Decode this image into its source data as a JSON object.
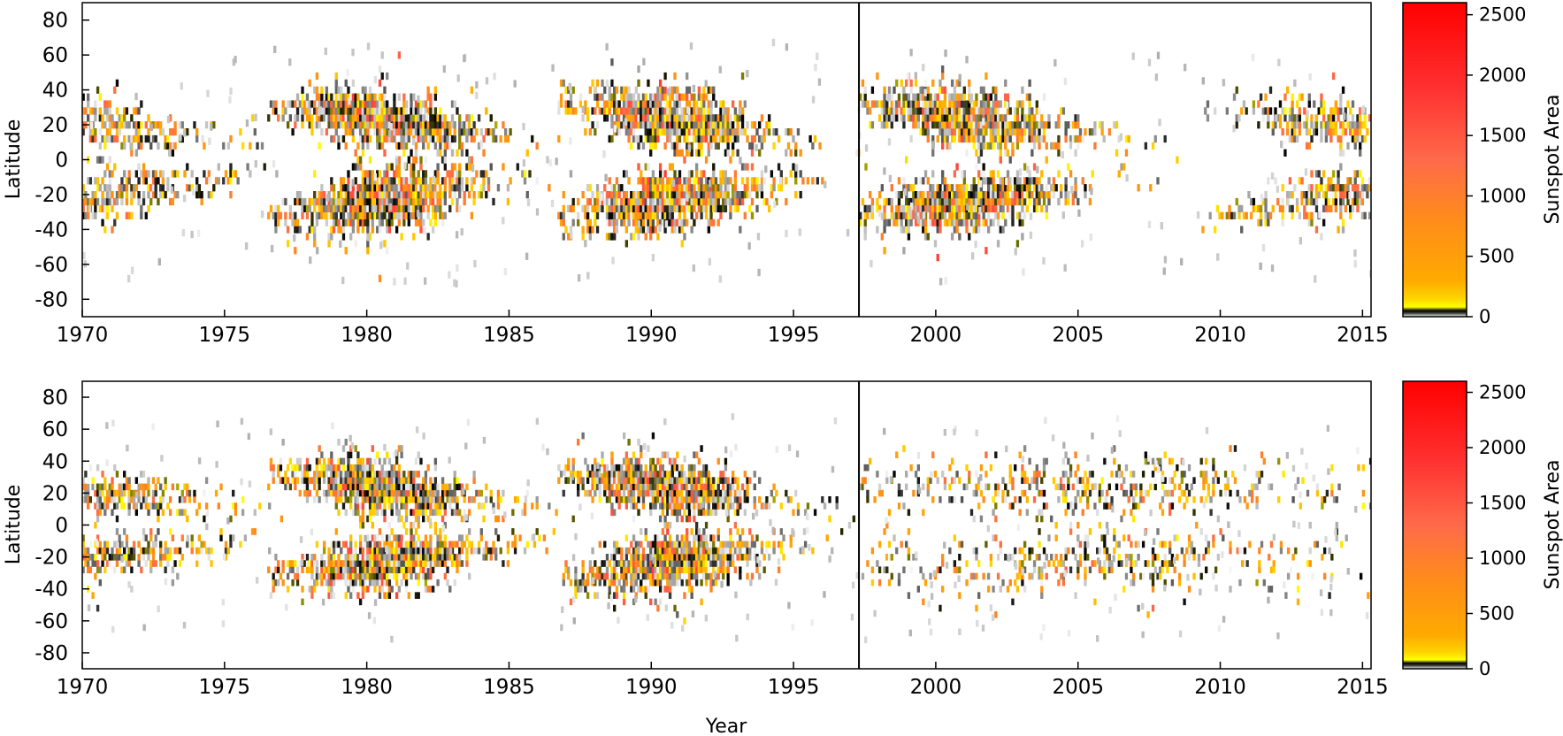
{
  "colors": {
    "scale": [
      "#ffffff",
      "#d9d9d9",
      "#9a9a9a",
      "#3a3a3a",
      "#000000",
      "#ffff00",
      "#ffd400",
      "#ffaa00",
      "#ff8c1a",
      "#ff6a4a",
      "#ff3030",
      "#ff0000"
    ],
    "scale_stops": [
      0,
      5,
      15,
      30,
      50,
      80,
      150,
      300,
      800,
      1300,
      1900,
      2600
    ],
    "divider": "#000000",
    "frame": "#000000"
  },
  "chart_data": [
    {
      "type": "heatmap",
      "title": "",
      "xlabel": "",
      "ylabel": "Latitude",
      "xlim": [
        1970,
        2015.3
      ],
      "ylim": [
        -90,
        90
      ],
      "x_ticks": [
        "1970",
        "1975",
        "1980",
        "1985",
        "1990",
        "1995",
        "2000",
        "2005",
        "2010",
        "2015"
      ],
      "y_ticks": [
        "80",
        "60",
        "40",
        "20",
        "0",
        "-20",
        "-40",
        "-60",
        "-80"
      ],
      "divider_year": 1997.3,
      "colorbar": {
        "label": "Sunspot Area",
        "range": [
          0,
          2600
        ],
        "ticks": [
          "2500",
          "2000",
          "1500",
          "1000",
          "500",
          "0"
        ]
      },
      "cycles": [
        {
          "start": 1964.8,
          "end": 1977.0,
          "max_year": 1970.5,
          "amplitude": 0.55
        },
        {
          "start": 1976.5,
          "end": 1987.3,
          "max_year": 1980.5,
          "amplitude": 0.9
        },
        {
          "start": 1986.7,
          "end": 1997.5,
          "max_year": 1990.5,
          "amplitude": 0.9
        },
        {
          "start": 1997.3,
          "end": 2008.6,
          "max_year": 2001.0,
          "amplitude": 0.85
        },
        {
          "start": 2009.0,
          "end": 2020.0,
          "max_year": 2014.0,
          "amplitude": 0.55
        }
      ]
    },
    {
      "type": "heatmap",
      "title": "",
      "xlabel": "Year",
      "ylabel": "Latitude",
      "xlim": [
        1970,
        2015.3
      ],
      "ylim": [
        -90,
        90
      ],
      "x_ticks": [
        "1970",
        "1975",
        "1980",
        "1985",
        "1990",
        "1995",
        "2000",
        "2005",
        "2010",
        "2015"
      ],
      "y_ticks": [
        "80",
        "60",
        "40",
        "20",
        "0",
        "-20",
        "-40",
        "-60",
        "-80"
      ],
      "divider_year": 1997.3,
      "colorbar": {
        "label": "Sunspot Area",
        "range": [
          0,
          2600
        ],
        "ticks": [
          "2500",
          "2000",
          "1500",
          "1000",
          "500",
          "0"
        ]
      },
      "cycles": [
        {
          "start": 1964.8,
          "end": 1977.0,
          "max_year": 1970.5,
          "amplitude": 0.55
        },
        {
          "start": 1976.5,
          "end": 1987.3,
          "max_year": 1980.5,
          "amplitude": 0.9
        },
        {
          "start": 1986.7,
          "end": 1997.5,
          "max_year": 1990.5,
          "amplitude": 0.9
        },
        {
          "start": 1997.3,
          "end": 2020.0,
          "max_year": 2005.0,
          "amplitude": 0.5,
          "scattered": true
        }
      ]
    }
  ]
}
